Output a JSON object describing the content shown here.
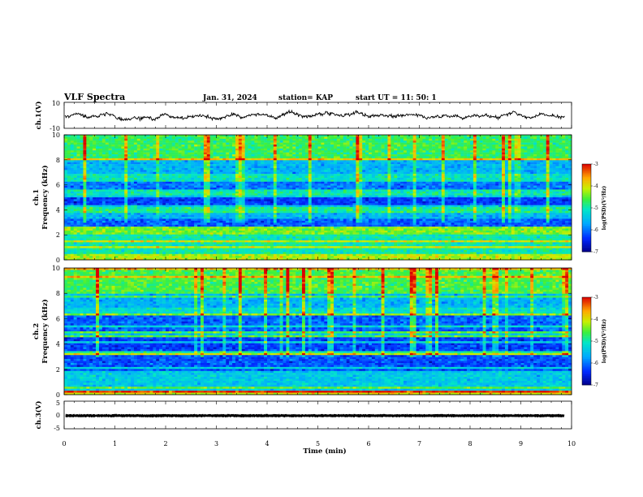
{
  "header": {
    "title": "VLF Spectra",
    "date": "Jan. 31, 2024",
    "station": "station= KAP",
    "start": "start UT =  11: 50: 1"
  },
  "chart_data": [
    {
      "type": "line",
      "id": "ch1-waveform",
      "ylabel": "ch.1(V)",
      "ylim": [
        -10,
        10
      ],
      "yticks": [
        "10",
        "-10"
      ],
      "xlim": [
        0,
        10
      ],
      "description_hint": "noisy waveform oscillating roughly between -4 and 4 V",
      "series": [
        {
          "values_summary": {
            "min": -5,
            "max": 5
          }
        }
      ]
    },
    {
      "type": "heatmap",
      "id": "ch1-spectrogram",
      "ylabel": "ch.1 Frequency (kHz)",
      "ylim": [
        0,
        10
      ],
      "yticks": [
        "0",
        "2",
        "4",
        "6",
        "8",
        "10"
      ],
      "xlim": [
        0,
        10
      ],
      "colorbar": {
        "label": "log(PSD)(V²/Hz)",
        "range": [
          -7,
          -3
        ],
        "ticks": [
          "-3",
          "-4",
          "-5",
          "-6",
          "-7"
        ]
      },
      "bands": [
        {
          "f0": 0.0,
          "f1": 0.4,
          "level": -4.2
        },
        {
          "f0": 0.4,
          "f1": 2.0,
          "level": -5.0
        },
        {
          "f0": 2.0,
          "f1": 2.6,
          "level": -4.4
        },
        {
          "f0": 2.6,
          "f1": 3.3,
          "level": -6.1
        },
        {
          "f0": 3.3,
          "f1": 3.8,
          "level": -5.6
        },
        {
          "f0": 3.8,
          "f1": 4.2,
          "level": -4.9
        },
        {
          "f0": 4.2,
          "f1": 5.2,
          "level": -6.3
        },
        {
          "f0": 5.2,
          "f1": 5.6,
          "level": -5.0
        },
        {
          "f0": 5.6,
          "f1": 6.3,
          "level": -6.0
        },
        {
          "f0": 6.3,
          "f1": 6.8,
          "level": -5.1
        },
        {
          "f0": 6.8,
          "f1": 8.0,
          "level": -5.6
        },
        {
          "f0": 8.0,
          "f1": 10.0,
          "level": -4.7
        }
      ]
    },
    {
      "type": "heatmap",
      "id": "ch2-spectrogram",
      "ylabel": "ch.2 Frequency (kHz)",
      "ylim": [
        0,
        10
      ],
      "yticks": [
        "0",
        "2",
        "4",
        "6",
        "8",
        "10"
      ],
      "xlim": [
        0,
        10
      ],
      "colorbar": {
        "label": "log(PSD)(V²/Hz)",
        "range": [
          -7,
          -3
        ],
        "ticks": [
          "-3",
          "-4",
          "-5",
          "-6",
          "-7"
        ]
      },
      "bands": [
        {
          "f0": 0.0,
          "f1": 0.3,
          "level": -4.0
        },
        {
          "f0": 0.3,
          "f1": 1.8,
          "level": -5.4
        },
        {
          "f0": 1.8,
          "f1": 3.2,
          "level": -6.2
        },
        {
          "f0": 3.2,
          "f1": 3.5,
          "level": -5.0
        },
        {
          "f0": 3.5,
          "f1": 4.5,
          "level": -6.3
        },
        {
          "f0": 4.5,
          "f1": 5.0,
          "level": -5.5
        },
        {
          "f0": 5.0,
          "f1": 6.2,
          "level": -6.1
        },
        {
          "f0": 6.2,
          "f1": 6.8,
          "level": -5.2
        },
        {
          "f0": 6.8,
          "f1": 8.0,
          "level": -5.6
        },
        {
          "f0": 8.0,
          "f1": 10.0,
          "level": -4.6
        }
      ]
    },
    {
      "type": "line",
      "id": "ch3-waveform",
      "ylabel": "ch.3(V)",
      "ylim": [
        -5,
        5
      ],
      "yticks": [
        "5",
        "0",
        "-5"
      ],
      "xlim": [
        0,
        10
      ],
      "series": [
        {
          "values_summary": {
            "mean": 0,
            "min": -0.6,
            "max": 0.6
          }
        }
      ]
    }
  ],
  "xaxis": {
    "label": "Time (min)",
    "ticks": [
      "0",
      "1",
      "2",
      "3",
      "4",
      "5",
      "6",
      "7",
      "8",
      "9",
      "10"
    ]
  }
}
